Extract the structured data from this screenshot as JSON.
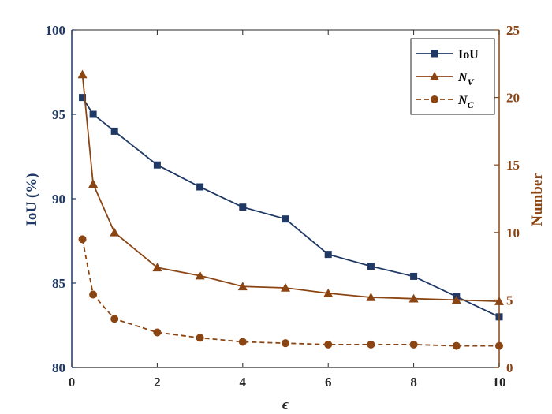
{
  "chart_data": {
    "type": "line",
    "xlabel": "ϵ",
    "ylabel_left": "IoU (%)",
    "ylabel_right": "Number",
    "xlim": [
      0,
      10
    ],
    "ylim_left": [
      80,
      100
    ],
    "ylim_right": [
      0,
      25
    ],
    "xticks": [
      0,
      2,
      4,
      6,
      8,
      10
    ],
    "yticks_left": [
      80,
      85,
      90,
      95,
      100
    ],
    "yticks_right": [
      0,
      5,
      10,
      15,
      20,
      25
    ],
    "grid": false,
    "legend_position": "top-right",
    "colors": {
      "left_axis": "#1f3864",
      "right_axis": "#8b4513",
      "iou": "#1f3864",
      "nv": "#8b4513",
      "nc": "#8b4513"
    },
    "series": [
      {
        "name": "IoU",
        "axis": "left",
        "marker": "square",
        "line": "solid",
        "x": [
          0.25,
          0.5,
          1,
          2,
          3,
          4,
          5,
          6,
          7,
          8,
          9,
          10
        ],
        "y": [
          96,
          95,
          94,
          92,
          90.7,
          89.5,
          88.8,
          86.7,
          86,
          85.4,
          84.2,
          83
        ]
      },
      {
        "name": "N",
        "subscript": "V",
        "axis": "right",
        "marker": "triangle",
        "line": "solid",
        "x": [
          0.25,
          0.5,
          1,
          2,
          3,
          4,
          5,
          6,
          7,
          8,
          9,
          10
        ],
        "y": [
          21.7,
          13.6,
          10,
          7.4,
          6.8,
          6,
          5.9,
          5.5,
          5.2,
          5.1,
          5,
          4.9
        ]
      },
      {
        "name": "N",
        "subscript": "C",
        "axis": "right",
        "marker": "circle",
        "line": "dashed",
        "x": [
          0.25,
          0.5,
          1,
          2,
          3,
          4,
          5,
          6,
          7,
          8,
          9,
          10
        ],
        "y": [
          9.5,
          5.4,
          3.6,
          2.6,
          2.2,
          1.9,
          1.8,
          1.7,
          1.7,
          1.7,
          1.6,
          1.6
        ]
      }
    ]
  }
}
